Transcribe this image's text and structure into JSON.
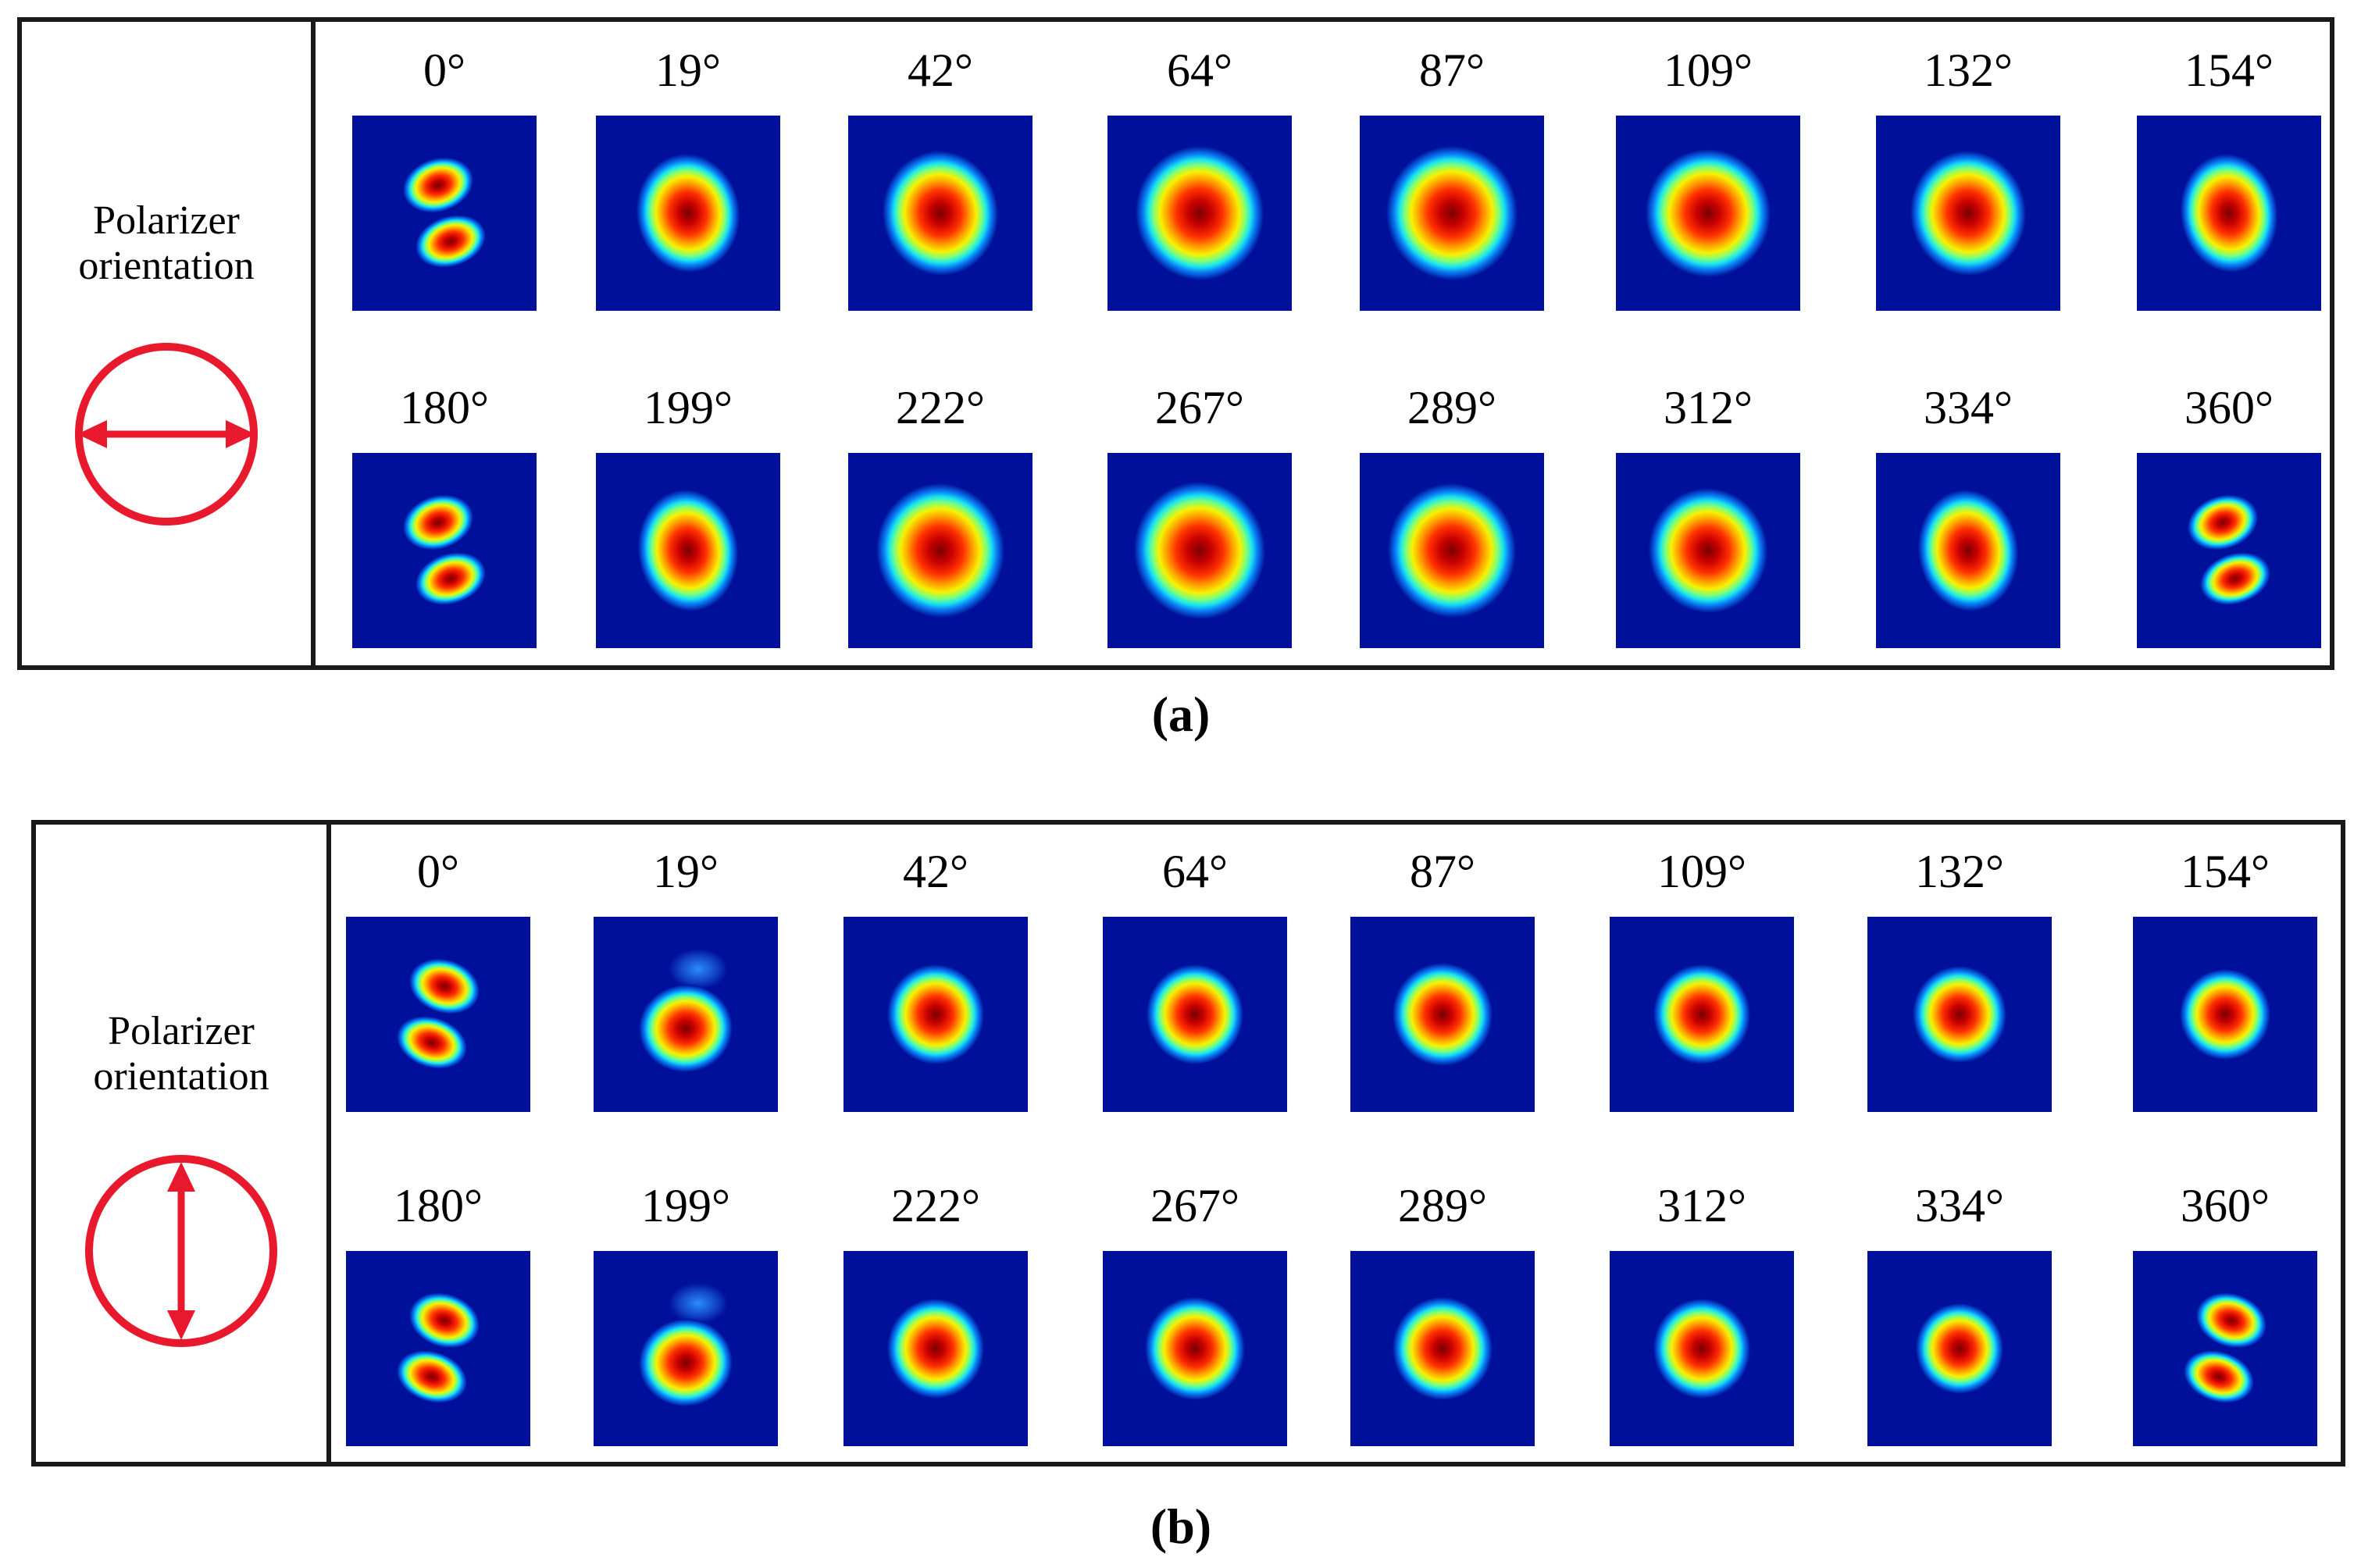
{
  "figure": {
    "panel_a": {
      "caption": "(a)",
      "side_label_line1": "Polarizer",
      "side_label_line2": "orientation",
      "icon": "circle-with-horizontal-double-arrow",
      "row1_angles": [
        "0°",
        "19°",
        "42°",
        "64°",
        "87°",
        "109°",
        "132°",
        "154°"
      ],
      "row2_angles": [
        "180°",
        "199°",
        "222°",
        "267°",
        "289°",
        "312°",
        "334°",
        "360°"
      ]
    },
    "panel_b": {
      "caption": "(b)",
      "side_label_line1": "Polarizer",
      "side_label_line2": "orientation",
      "icon": "circle-with-vertical-double-arrow",
      "row1_angles": [
        "0°",
        "19°",
        "42°",
        "64°",
        "87°",
        "109°",
        "132°",
        "154°"
      ],
      "row2_angles": [
        "180°",
        "199°",
        "222°",
        "267°",
        "289°",
        "312°",
        "334°",
        "360°"
      ]
    },
    "colors": {
      "icon_red": "#e8192c",
      "beam_background": "#00109a",
      "border": "#1a1a1a"
    }
  }
}
